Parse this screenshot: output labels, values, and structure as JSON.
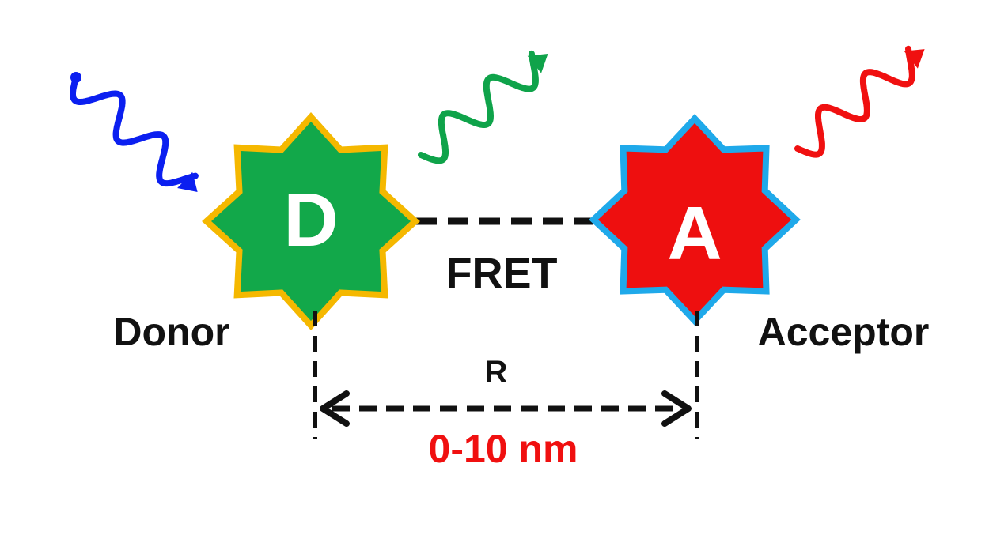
{
  "donor": {
    "letter": "D",
    "label": "Donor",
    "fill_color": "#12a84a",
    "border_color": "#f5b800",
    "excitation_color": "#0b1ff0",
    "emission_color": "#0fa34a"
  },
  "acceptor": {
    "letter": "A",
    "label": "Acceptor",
    "fill_color": "#ee0f0f",
    "border_color": "#1fa9ea",
    "emission_color": "#f01010"
  },
  "transfer": {
    "label": "FRET"
  },
  "distance": {
    "symbol": "R",
    "range": "0-10 nm",
    "range_color": "#f01010"
  },
  "text_color": "#111111"
}
